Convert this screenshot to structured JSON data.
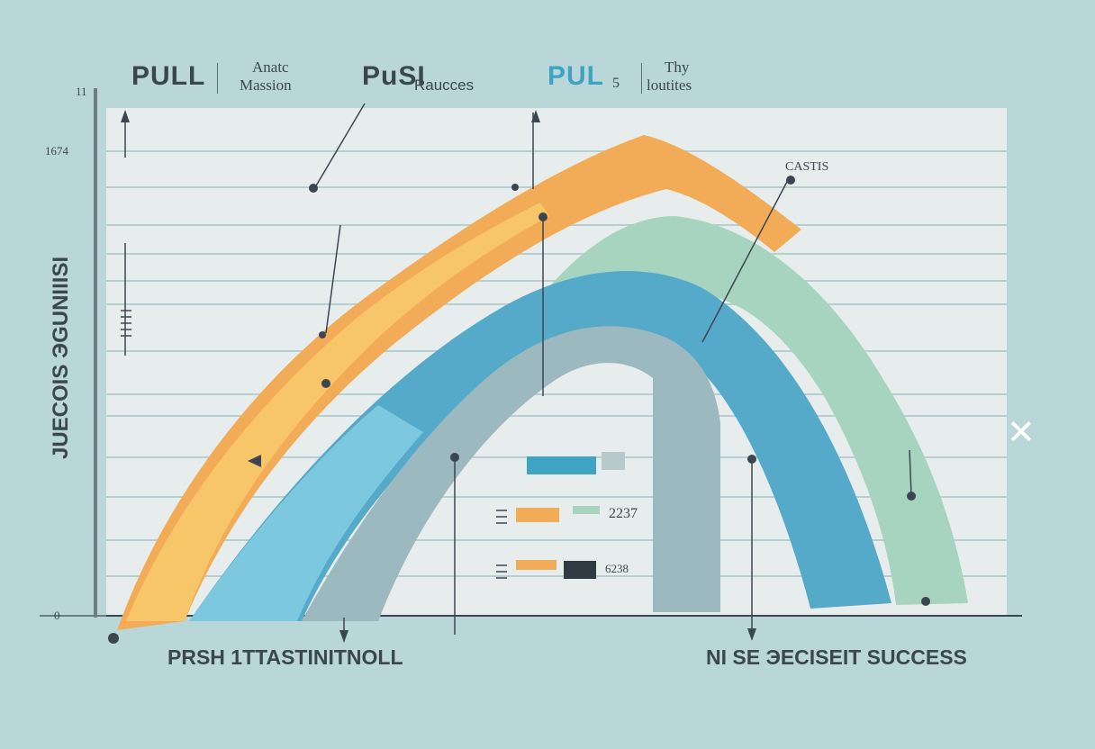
{
  "header": {
    "item1": "PULL",
    "item2_line1": "Anatc",
    "item2_line2": "Massion",
    "item3": "PuSI",
    "item4": "Raucces",
    "item5": "PUL",
    "item5_suffix": "5",
    "item6_line1": "Thy",
    "item6_line2": "loutites"
  },
  "y_axis": {
    "label": "JUECOIS ЭGUNIIISI",
    "tick_top": "11",
    "tick_mid": "1674",
    "tick_origin": "0"
  },
  "annotations": {
    "casts": "CASTIS",
    "value_a": "2237",
    "value_b": "6238"
  },
  "bottom": {
    "left_label": "PRSH 1TTASTINITNOLL",
    "right_label": "NI SE ЭECISEIT SUCCESS"
  },
  "colors": {
    "background": "#b9d7d8",
    "plot_panel": "#e7eded",
    "orange": "#f2ac58",
    "orange_light": "#f7c669",
    "blue": "#55a9c9",
    "blue_light": "#7cc8de",
    "green": "#a6d4be",
    "gray_blue": "#9bb9be",
    "accent_blue": "#3fa3c4",
    "text": "#3b4650"
  },
  "chart_data": {
    "type": "area",
    "title": "",
    "xlabel": "",
    "ylabel": "JUECOIS ЭGUNIIISI",
    "grid": true,
    "legend": "none",
    "series": [
      {
        "color": "orange",
        "x": [
          0,
          0.1,
          0.25,
          0.45,
          0.6,
          0.75
        ],
        "y": [
          0,
          0.3,
          0.6,
          0.9,
          1.0,
          0.8
        ]
      },
      {
        "color": "blue",
        "x": [
          0.1,
          0.25,
          0.45,
          0.6,
          0.75,
          0.9
        ],
        "y": [
          0,
          0.35,
          0.7,
          0.75,
          0.6,
          0
        ]
      },
      {
        "color": "green",
        "x": [
          0.5,
          0.6,
          0.75,
          0.9,
          0.95
        ],
        "y": [
          0.6,
          0.75,
          0.7,
          0.35,
          0.1
        ]
      }
    ],
    "inner_bars": [
      {
        "label": "",
        "value": 0.55
      },
      {
        "label": "2237",
        "value": 0.35
      },
      {
        "label": "6238",
        "value": 0.5
      }
    ]
  }
}
